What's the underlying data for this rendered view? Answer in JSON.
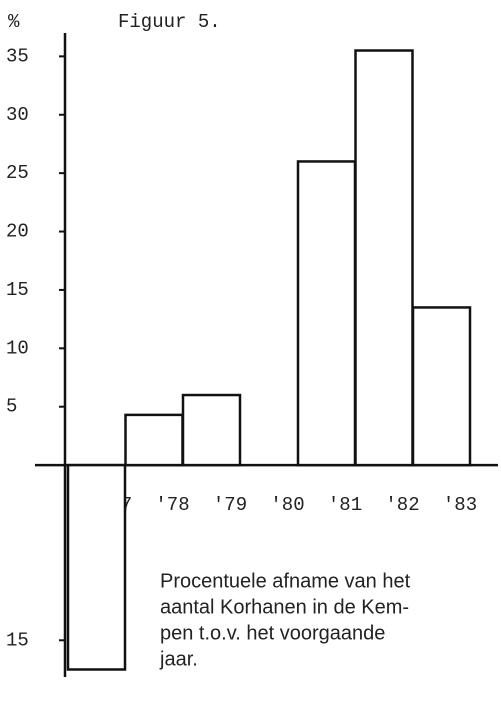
{
  "chart_data": {
    "type": "bar",
    "title": "Figuur 5.",
    "y_label": "%",
    "caption": [
      "Procentuele afname van het",
      "aantal Korhanen in de Kem-",
      "pen t.o.v. het voorgaande",
      "jaar."
    ],
    "categories": [
      "'77",
      "'78",
      "'79",
      "'80",
      "'81",
      "'82",
      "'83"
    ],
    "values": [
      -17.5,
      4.3,
      6,
      null,
      26,
      35.5,
      13.5
    ],
    "color": "#ffffff",
    "ylim": [
      -19,
      37
    ],
    "yticks": [
      {
        "value": -15,
        "label": "15"
      },
      5,
      10,
      15,
      20,
      25,
      30,
      35
    ],
    "grid": false
  }
}
